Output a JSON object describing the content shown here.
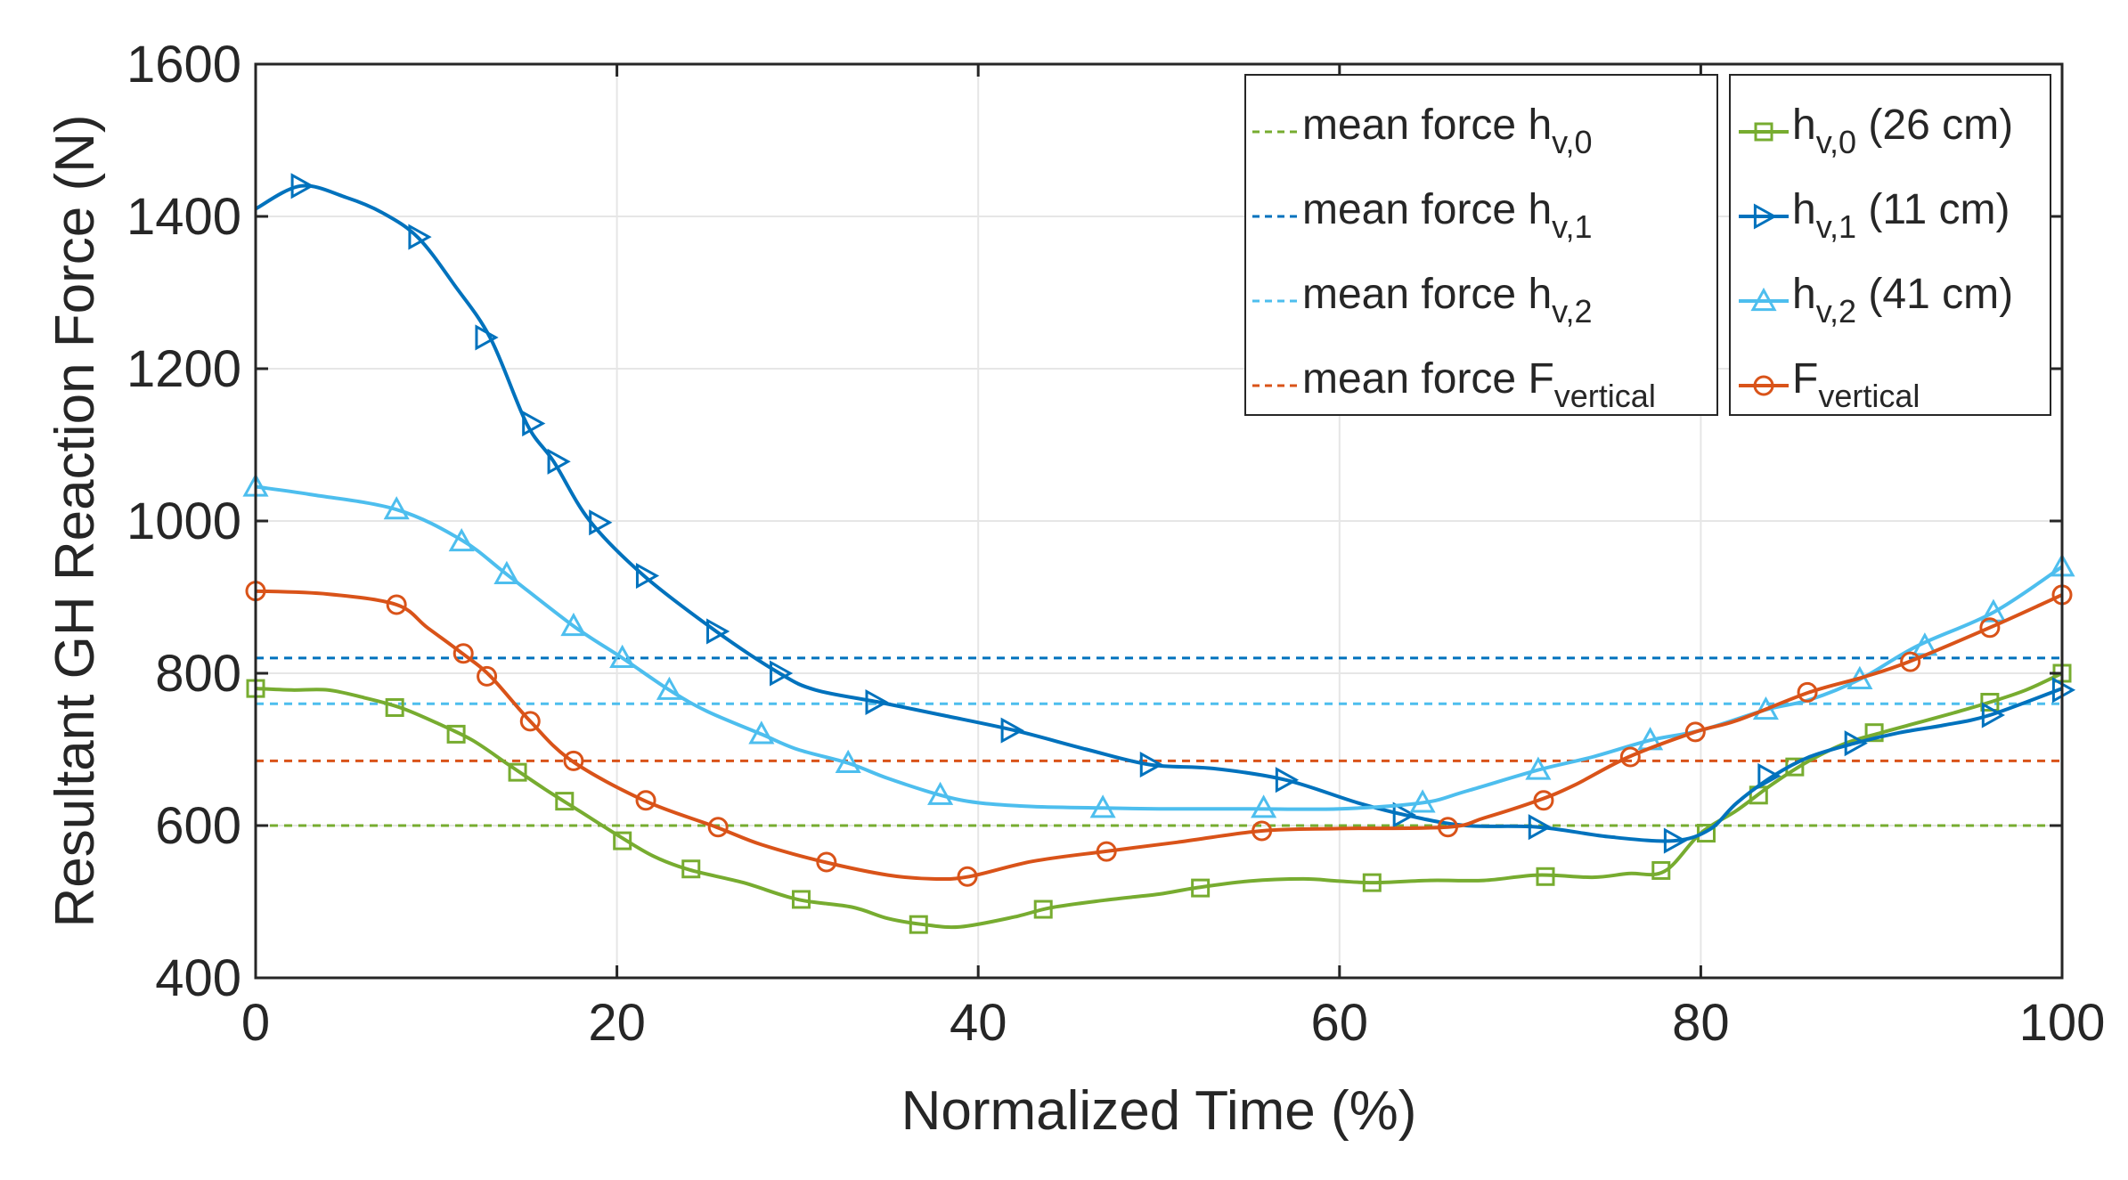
{
  "chart_data": {
    "type": "line",
    "title": "",
    "xlabel": "Normalized Time (%)",
    "ylabel": "Resultant GH Reaction Force (N)",
    "xlim": [
      0,
      100
    ],
    "ylim": [
      400,
      1600
    ],
    "xticks": [
      0,
      20,
      40,
      60,
      80,
      100
    ],
    "yticks": [
      400,
      600,
      800,
      1000,
      1200,
      1400,
      1600
    ],
    "grid": true,
    "legend_mean": {
      "position": "top-right",
      "entries": [
        {
          "text": "mean force h",
          "sub": "v,0",
          "color": "#77AC30"
        },
        {
          "text": "mean force h",
          "sub": "v,1",
          "color": "#0072BD"
        },
        {
          "text": "mean force h",
          "sub": "v,2",
          "color": "#4DBEEE"
        },
        {
          "text": "mean force F",
          "sub": "vertical",
          "color": "#D95319"
        }
      ]
    },
    "legend_series": {
      "position": "top-right",
      "entries": [
        {
          "text": "h",
          "sub": "v,0",
          "suffix": " (26 cm)",
          "color": "#77AC30",
          "marker": "square"
        },
        {
          "text": "h",
          "sub": "v,1",
          "suffix": " (11 cm)",
          "color": "#0072BD",
          "marker": "triangle-right"
        },
        {
          "text": "h",
          "sub": "v,2",
          "suffix": " (41 cm)",
          "color": "#4DBEEE",
          "marker": "triangle-up"
        },
        {
          "text": "F",
          "sub": "vertical",
          "suffix": "",
          "color": "#D95319",
          "marker": "circle"
        }
      ]
    },
    "mean_lines": [
      {
        "name": "mean force h_v,1",
        "value": 820,
        "color": "#0072BD"
      },
      {
        "name": "mean force h_v,2",
        "value": 760,
        "color": "#4DBEEE"
      },
      {
        "name": "mean force F_vertical",
        "value": 685,
        "color": "#D95319"
      },
      {
        "name": "mean force h_v,0",
        "value": 600,
        "color": "#77AC30"
      }
    ],
    "series": [
      {
        "name": "h_v,0 (26 cm)",
        "color": "#77AC30",
        "marker": "square",
        "curve": [
          [
            0,
            780
          ],
          [
            2,
            778
          ],
          [
            4,
            778
          ],
          [
            6,
            768
          ],
          [
            8,
            755
          ],
          [
            10,
            735
          ],
          [
            12,
            712
          ],
          [
            14,
            680
          ],
          [
            16,
            648
          ],
          [
            18,
            618
          ],
          [
            20,
            588
          ],
          [
            22,
            560
          ],
          [
            24,
            542
          ],
          [
            27,
            525
          ],
          [
            30,
            503
          ],
          [
            33,
            493
          ],
          [
            35,
            478
          ],
          [
            37,
            470
          ],
          [
            39,
            467
          ],
          [
            42,
            480
          ],
          [
            44,
            492
          ],
          [
            47,
            502
          ],
          [
            50,
            510
          ],
          [
            52,
            518
          ],
          [
            55,
            527
          ],
          [
            58,
            530
          ],
          [
            60,
            527
          ],
          [
            62,
            525
          ],
          [
            65,
            528
          ],
          [
            68,
            528
          ],
          [
            71,
            535
          ],
          [
            74,
            532
          ],
          [
            76,
            537
          ],
          [
            78,
            540
          ],
          [
            80,
            590
          ],
          [
            82,
            620
          ],
          [
            84,
            655
          ],
          [
            86,
            685
          ],
          [
            88,
            708
          ],
          [
            90,
            722
          ],
          [
            92,
            735
          ],
          [
            94,
            748
          ],
          [
            96,
            762
          ],
          [
            98,
            778
          ],
          [
            100,
            800
          ]
        ],
        "markers": [
          [
            0,
            780
          ],
          [
            7.7,
            755
          ],
          [
            11.1,
            720
          ],
          [
            14.5,
            670
          ],
          [
            17.1,
            632
          ],
          [
            20.3,
            580
          ],
          [
            24.1,
            543
          ],
          [
            30.2,
            503
          ],
          [
            36.7,
            470
          ],
          [
            43.6,
            490
          ],
          [
            52.3,
            518
          ],
          [
            61.8,
            525
          ],
          [
            71.4,
            533
          ],
          [
            77.8,
            541
          ],
          [
            80.3,
            590
          ],
          [
            83.2,
            640
          ],
          [
            85.2,
            677
          ],
          [
            89.6,
            722
          ],
          [
            96.0,
            762
          ],
          [
            100,
            800
          ]
        ]
      },
      {
        "name": "h_v,1 (11 cm)",
        "color": "#0072BD",
        "marker": "triangle-right",
        "curve": [
          [
            0,
            1410
          ],
          [
            2.5,
            1440
          ],
          [
            5,
            1425
          ],
          [
            7,
            1405
          ],
          [
            9,
            1372
          ],
          [
            11,
            1310
          ],
          [
            13,
            1240
          ],
          [
            15,
            1128
          ],
          [
            16.5,
            1078
          ],
          [
            18.5,
            1000
          ],
          [
            21.5,
            928
          ],
          [
            25.5,
            855
          ],
          [
            29,
            800
          ],
          [
            31,
            778
          ],
          [
            34.5,
            762
          ],
          [
            38,
            745
          ],
          [
            42,
            725
          ],
          [
            46,
            700
          ],
          [
            49.5,
            680
          ],
          [
            53,
            675
          ],
          [
            57,
            660
          ],
          [
            61,
            630
          ],
          [
            64,
            612
          ],
          [
            67,
            600
          ],
          [
            71,
            598
          ],
          [
            75,
            585
          ],
          [
            78.5,
            580
          ],
          [
            80.5,
            595
          ],
          [
            82,
            630
          ],
          [
            84,
            665
          ],
          [
            86,
            690
          ],
          [
            88.5,
            708
          ],
          [
            91,
            722
          ],
          [
            93.5,
            732
          ],
          [
            96,
            745
          ],
          [
            100,
            780
          ]
        ],
        "markers": [
          [
            2.5,
            1440
          ],
          [
            9,
            1373
          ],
          [
            12.7,
            1241
          ],
          [
            15.3,
            1128
          ],
          [
            16.7,
            1078
          ],
          [
            19,
            998
          ],
          [
            21.6,
            928
          ],
          [
            25.5,
            855
          ],
          [
            29,
            800
          ],
          [
            34.3,
            762
          ],
          [
            41.8,
            725
          ],
          [
            49.5,
            680
          ],
          [
            57,
            660
          ],
          [
            63.5,
            614
          ],
          [
            71,
            598
          ],
          [
            78.5,
            580
          ],
          [
            83.7,
            665
          ],
          [
            88.5,
            708
          ],
          [
            96.1,
            745
          ],
          [
            100,
            778
          ]
        ]
      },
      {
        "name": "h_v,2 (41 cm)",
        "color": "#4DBEEE",
        "marker": "triangle-up",
        "curve": [
          [
            0,
            1045
          ],
          [
            3,
            1035
          ],
          [
            7.8,
            1015
          ],
          [
            11.4,
            975
          ],
          [
            13.9,
            930
          ],
          [
            17.6,
            862
          ],
          [
            20.3,
            820
          ],
          [
            22.9,
            778
          ],
          [
            25,
            750
          ],
          [
            28,
            720
          ],
          [
            30,
            700
          ],
          [
            32.8,
            682
          ],
          [
            35,
            662
          ],
          [
            37.9,
            640
          ],
          [
            40,
            630
          ],
          [
            43,
            625
          ],
          [
            46.9,
            623
          ],
          [
            50,
            622
          ],
          [
            55,
            622
          ],
          [
            60,
            622
          ],
          [
            64.6,
            630
          ],
          [
            67,
            645
          ],
          [
            71,
            673
          ],
          [
            74,
            690
          ],
          [
            77.2,
            712
          ],
          [
            80,
            725
          ],
          [
            83.6,
            752
          ],
          [
            86,
            765
          ],
          [
            88.8,
            792
          ],
          [
            92,
            836
          ],
          [
            96.2,
            880
          ],
          [
            100,
            940
          ]
        ],
        "markers": [
          [
            0,
            1045
          ],
          [
            7.8,
            1015
          ],
          [
            11.4,
            973
          ],
          [
            13.9,
            930
          ],
          [
            17.6,
            862
          ],
          [
            20.3,
            820
          ],
          [
            22.9,
            778
          ],
          [
            28,
            720
          ],
          [
            32.8,
            682
          ],
          [
            37.9,
            640
          ],
          [
            46.9,
            623
          ],
          [
            55.8,
            623
          ],
          [
            64.6,
            630
          ],
          [
            71,
            673
          ],
          [
            77.2,
            712
          ],
          [
            83.6,
            752
          ],
          [
            88.8,
            792
          ],
          [
            92.4,
            836
          ],
          [
            96.2,
            880
          ],
          [
            100,
            940
          ]
        ]
      },
      {
        "name": "F_vertical",
        "color": "#D95319",
        "marker": "circle",
        "curve": [
          [
            0,
            908
          ],
          [
            4,
            904
          ],
          [
            7.8,
            890
          ],
          [
            9.5,
            860
          ],
          [
            11.5,
            825
          ],
          [
            13,
            796
          ],
          [
            15.2,
            737
          ],
          [
            17.5,
            685
          ],
          [
            21.5,
            633
          ],
          [
            25.5,
            598
          ],
          [
            28,
            575
          ],
          [
            31.5,
            552
          ],
          [
            35,
            535
          ],
          [
            37.5,
            530
          ],
          [
            39.5,
            533
          ],
          [
            43,
            553
          ],
          [
            47,
            566
          ],
          [
            51,
            578
          ],
          [
            55.7,
            593
          ],
          [
            60,
            596
          ],
          [
            66,
            598
          ],
          [
            68,
            610
          ],
          [
            71,
            633
          ],
          [
            73,
            653
          ],
          [
            76,
            690
          ],
          [
            79.7,
            723
          ],
          [
            82,
            738
          ],
          [
            86,
            775
          ],
          [
            89,
            795
          ],
          [
            91.5,
            815
          ],
          [
            96,
            860
          ],
          [
            100,
            903
          ]
        ],
        "markers": [
          [
            0,
            908
          ],
          [
            7.8,
            890
          ],
          [
            11.5,
            826
          ],
          [
            12.8,
            796
          ],
          [
            15.2,
            737
          ],
          [
            17.6,
            685
          ],
          [
            21.6,
            633
          ],
          [
            25.6,
            598
          ],
          [
            31.6,
            552
          ],
          [
            39.4,
            533
          ],
          [
            47.1,
            566
          ],
          [
            55.7,
            593
          ],
          [
            66,
            598
          ],
          [
            71.3,
            633
          ],
          [
            76.1,
            690
          ],
          [
            79.7,
            723
          ],
          [
            85.9,
            775
          ],
          [
            91.6,
            815
          ],
          [
            96,
            860
          ],
          [
            100,
            903
          ]
        ]
      }
    ]
  }
}
